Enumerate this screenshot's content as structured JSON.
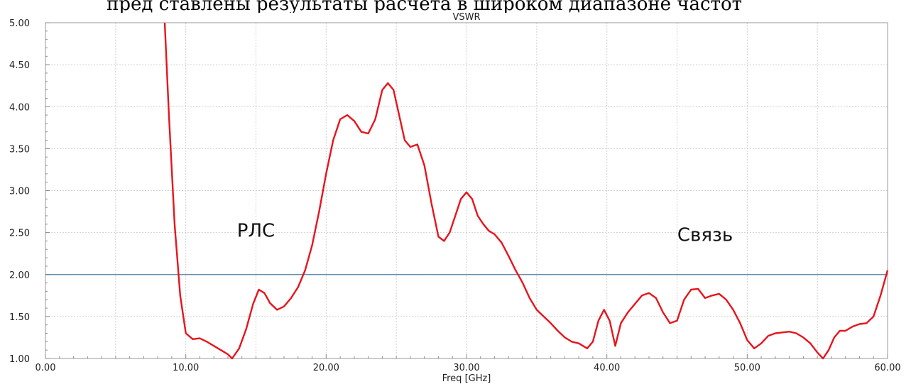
{
  "caption_fragment": "пред   ставлены   результаты   расчета   в   широком   диапазоне   частот",
  "chart_data": {
    "type": "line",
    "title": "VSWR",
    "xlabel": "Freq [GHz]",
    "ylabel": "",
    "xlim": [
      0,
      60
    ],
    "ylim": [
      1.0,
      5.0
    ],
    "x_ticks": [
      "0.00",
      "10.00",
      "20.00",
      "30.00",
      "40.00",
      "50.00",
      "60.00"
    ],
    "y_ticks": [
      "1.00",
      "1.50",
      "2.00",
      "2.50",
      "3.00",
      "3.50",
      "4.00",
      "4.50",
      "5.00"
    ],
    "grid": true,
    "reference_line": {
      "y": 2.0,
      "color": "#4f7fa6"
    },
    "series": [
      {
        "color": "#e8141c",
        "x": [
          8.5,
          8.8,
          9.2,
          9.6,
          10.0,
          10.5,
          11.0,
          11.5,
          12.0,
          12.5,
          13.0,
          13.3,
          13.8,
          14.3,
          14.8,
          15.2,
          15.6,
          16.0,
          16.5,
          17.0,
          17.5,
          18.0,
          18.5,
          19.0,
          19.5,
          20.0,
          20.5,
          21.0,
          21.5,
          22.0,
          22.5,
          23.0,
          23.5,
          24.0,
          24.4,
          24.8,
          25.2,
          25.6,
          26.0,
          26.5,
          27.0,
          27.5,
          28.0,
          28.4,
          28.8,
          29.2,
          29.6,
          30.0,
          30.4,
          30.8,
          31.2,
          31.6,
          32.0,
          32.5,
          33.0,
          33.5,
          34.0,
          34.5,
          35.0,
          35.5,
          36.0,
          36.5,
          37.0,
          37.5,
          38.0,
          38.6,
          39.0,
          39.4,
          39.8,
          40.2,
          40.6,
          41.0,
          41.5,
          42.0,
          42.5,
          43.0,
          43.5,
          44.0,
          44.5,
          45.0,
          45.5,
          46.0,
          46.5,
          47.0,
          47.5,
          48.0,
          48.5,
          49.0,
          49.5,
          50.0,
          50.5,
          51.0,
          51.5,
          52.0,
          52.5,
          53.0,
          53.5,
          54.0,
          54.5,
          55.0,
          55.4,
          55.8,
          56.2,
          56.6,
          57.0,
          57.5,
          58.0,
          58.5,
          59.0,
          59.5,
          60.0
        ],
        "y": [
          5.0,
          3.9,
          2.6,
          1.75,
          1.3,
          1.23,
          1.24,
          1.2,
          1.15,
          1.1,
          1.05,
          1.0,
          1.12,
          1.35,
          1.65,
          1.82,
          1.78,
          1.66,
          1.58,
          1.62,
          1.72,
          1.85,
          2.05,
          2.35,
          2.75,
          3.2,
          3.6,
          3.85,
          3.9,
          3.83,
          3.7,
          3.68,
          3.85,
          4.2,
          4.28,
          4.2,
          3.9,
          3.6,
          3.52,
          3.55,
          3.3,
          2.85,
          2.45,
          2.4,
          2.5,
          2.7,
          2.9,
          2.98,
          2.9,
          2.7,
          2.6,
          2.52,
          2.48,
          2.38,
          2.22,
          2.05,
          1.9,
          1.72,
          1.58,
          1.5,
          1.42,
          1.33,
          1.25,
          1.2,
          1.18,
          1.12,
          1.2,
          1.45,
          1.58,
          1.45,
          1.15,
          1.42,
          1.55,
          1.65,
          1.75,
          1.78,
          1.72,
          1.55,
          1.42,
          1.45,
          1.7,
          1.82,
          1.83,
          1.72,
          1.75,
          1.77,
          1.7,
          1.58,
          1.42,
          1.22,
          1.12,
          1.18,
          1.27,
          1.3,
          1.31,
          1.32,
          1.3,
          1.25,
          1.18,
          1.07,
          1.0,
          1.1,
          1.25,
          1.33,
          1.33,
          1.38,
          1.41,
          1.42,
          1.5,
          1.75,
          2.05
        ]
      }
    ],
    "annotations": [
      {
        "text": "РЛС",
        "x": 15.0,
        "y": 2.45
      },
      {
        "text": "Связь",
        "x": 47.0,
        "y": 2.4
      }
    ]
  }
}
